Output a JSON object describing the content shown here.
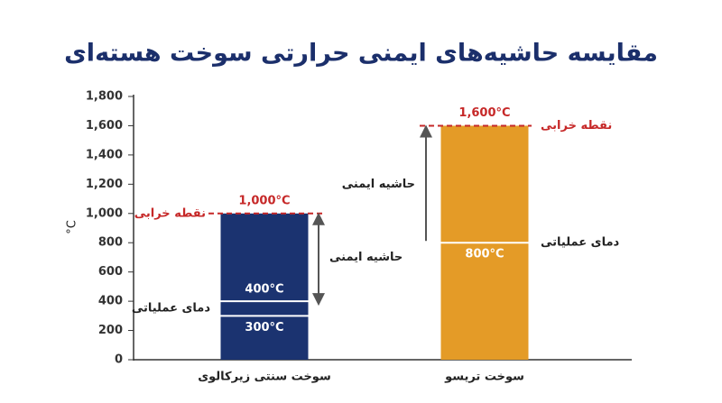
{
  "chart_data": {
    "type": "bar",
    "title": "مقایسه حاشیه‌های ایمنی حرارتی سوخت هسته‌ای",
    "y_label": "°C",
    "categories": [
      "سوخت سنتی زیرکالوی",
      "سوخت تریسو"
    ],
    "values": [
      1000,
      1600
    ],
    "value_labels": [
      "1,000°C",
      "1,600°C"
    ],
    "colors": [
      "#1b3370",
      "#e49b27"
    ],
    "failure_label": "نقطه خرابی",
    "failure_color": "#c62828",
    "operating_label": "دمای عملیاتی",
    "operating": [
      {
        "values": [
          400,
          300
        ],
        "value_labels": [
          "400°C",
          "300°C"
        ]
      },
      {
        "values": [
          800
        ],
        "value_labels": [
          "800°C"
        ]
      }
    ],
    "margin_label": "حاشیه ایمنی",
    "ylim": [
      0,
      1800
    ],
    "yticks": [
      0,
      200,
      400,
      600,
      800,
      {
        "value": 1000,
        "label": "1,000"
      },
      {
        "value": 1200,
        "label": "1,200"
      },
      {
        "value": 1400,
        "label": "1,400"
      },
      {
        "value": 1600,
        "label": "1,600"
      },
      {
        "value": 1800,
        "label": "1,800"
      }
    ]
  }
}
